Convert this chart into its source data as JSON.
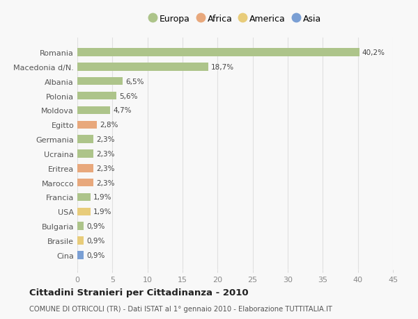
{
  "countries": [
    "Romania",
    "Macedonia d/N.",
    "Albania",
    "Polonia",
    "Moldova",
    "Egitto",
    "Germania",
    "Ucraina",
    "Eritrea",
    "Marocco",
    "Francia",
    "USA",
    "Bulgaria",
    "Brasile",
    "Cina"
  ],
  "values": [
    40.2,
    18.7,
    6.5,
    5.6,
    4.7,
    2.8,
    2.3,
    2.3,
    2.3,
    2.3,
    1.9,
    1.9,
    0.9,
    0.9,
    0.9
  ],
  "labels": [
    "40,2%",
    "18,7%",
    "6,5%",
    "5,6%",
    "4,7%",
    "2,8%",
    "2,3%",
    "2,3%",
    "2,3%",
    "2,3%",
    "1,9%",
    "1,9%",
    "0,9%",
    "0,9%",
    "0,9%"
  ],
  "categories": [
    "Europa",
    "Africa",
    "America",
    "Asia"
  ],
  "continent": [
    "Europa",
    "Europa",
    "Europa",
    "Europa",
    "Europa",
    "Africa",
    "Europa",
    "Europa",
    "Africa",
    "Africa",
    "Europa",
    "America",
    "Europa",
    "America",
    "Asia"
  ],
  "colors": {
    "Europa": "#adc48a",
    "Africa": "#e8a87c",
    "America": "#e8cc7a",
    "Asia": "#7a9fd4"
  },
  "legend_colors": [
    "#adc48a",
    "#e8a87c",
    "#e8cc7a",
    "#7a9fd4"
  ],
  "bg_color": "#f8f8f8",
  "grid_color": "#e0e0e0",
  "title": "Cittadini Stranieri per Cittadinanza - 2010",
  "subtitle": "COMUNE DI OTRICOLI (TR) - Dati ISTAT al 1° gennaio 2010 - Elaborazione TUTTITALIA.IT",
  "xlim": [
    0,
    45
  ],
  "xticks": [
    0,
    5,
    10,
    15,
    20,
    25,
    30,
    35,
    40,
    45
  ]
}
